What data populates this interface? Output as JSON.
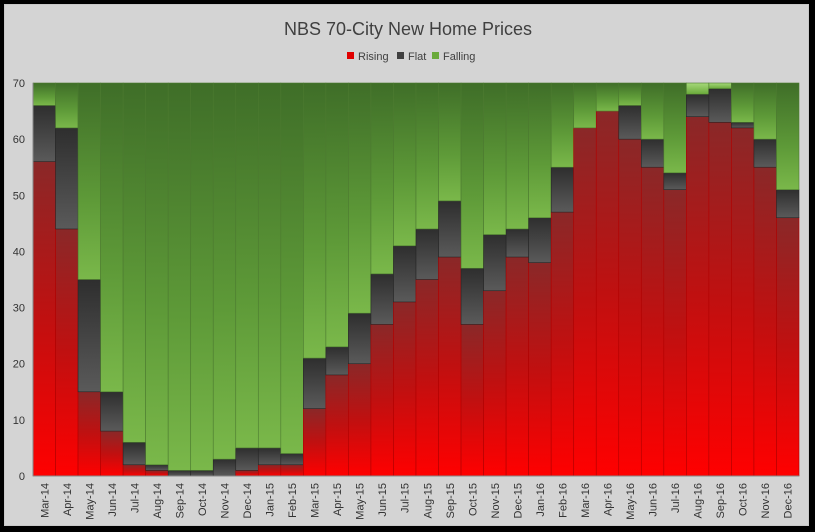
{
  "chart_data": {
    "type": "bar",
    "stacked": true,
    "title": "NBS 70-City New Home Prices",
    "legend_position": "top",
    "ylim": [
      0,
      70
    ],
    "yticks": [
      0,
      10,
      20,
      30,
      40,
      50,
      60,
      70
    ],
    "grid": false,
    "categories": [
      "Mar-14",
      "Apr-14",
      "May-14",
      "Jun-14",
      "Jul-14",
      "Aug-14",
      "Sep-14",
      "Oct-14",
      "Nov-14",
      "Dec-14",
      "Jan-15",
      "Feb-15",
      "Mar-15",
      "Apr-15",
      "May-15",
      "Jun-15",
      "Jul-15",
      "Aug-15",
      "Sep-15",
      "Oct-15",
      "Nov-15",
      "Dec-15",
      "Jan-16",
      "Feb-16",
      "Mar-16",
      "Apr-16",
      "May-16",
      "Jun-16",
      "Jul-16",
      "Aug-16",
      "Sep-16",
      "Oct-16",
      "Nov-16",
      "Dec-16"
    ],
    "series": [
      {
        "name": "Rising",
        "color": "#e00000",
        "values": [
          56,
          44,
          15,
          8,
          2,
          1,
          0,
          0,
          0,
          1,
          2,
          2,
          12,
          18,
          20,
          27,
          31,
          35,
          39,
          27,
          33,
          39,
          38,
          47,
          62,
          65,
          60,
          55,
          51,
          64,
          63,
          62,
          55,
          46
        ]
      },
      {
        "name": "Flat",
        "color": "#404040",
        "values": [
          10,
          18,
          20,
          7,
          4,
          1,
          1,
          1,
          3,
          4,
          3,
          2,
          9,
          5,
          9,
          9,
          10,
          9,
          10,
          10,
          10,
          5,
          8,
          8,
          0,
          0,
          6,
          5,
          3,
          4,
          6,
          1,
          5,
          5
        ]
      },
      {
        "name": "Falling",
        "color": "#6aaa3a",
        "values": [
          4,
          8,
          35,
          55,
          64,
          68,
          69,
          69,
          67,
          65,
          65,
          66,
          49,
          47,
          41,
          34,
          29,
          26,
          21,
          33,
          27,
          26,
          24,
          15,
          8,
          5,
          4,
          10,
          16,
          2,
          1,
          7,
          10,
          19
        ]
      }
    ]
  }
}
